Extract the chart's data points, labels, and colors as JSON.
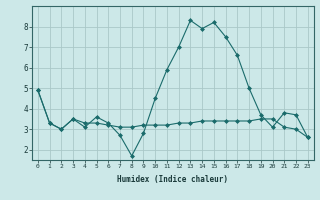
{
  "xlabel": "Humidex (Indice chaleur)",
  "ylabel": "",
  "background_color": "#cce8e8",
  "grid_color": "#aac8c8",
  "line_color": "#1a6b6b",
  "x": [
    0,
    1,
    2,
    3,
    4,
    5,
    6,
    7,
    8,
    9,
    10,
    11,
    12,
    13,
    14,
    15,
    16,
    17,
    18,
    19,
    20,
    21,
    22,
    23
  ],
  "line1": [
    4.9,
    3.3,
    3.0,
    3.5,
    3.1,
    3.6,
    3.3,
    2.7,
    1.7,
    2.8,
    4.5,
    5.9,
    7.0,
    8.3,
    7.9,
    8.2,
    7.5,
    6.6,
    5.0,
    3.7,
    3.1,
    3.8,
    3.7,
    2.6
  ],
  "line2": [
    4.9,
    3.3,
    3.0,
    3.5,
    3.3,
    3.3,
    3.2,
    3.1,
    3.1,
    3.2,
    3.2,
    3.2,
    3.3,
    3.3,
    3.4,
    3.4,
    3.4,
    3.4,
    3.4,
    3.5,
    3.5,
    3.1,
    3.0,
    2.6
  ],
  "ylim": [
    1.5,
    9.0
  ],
  "yticks": [
    2,
    3,
    4,
    5,
    6,
    7,
    8
  ],
  "xtick_labels": [
    "0",
    "1",
    "2",
    "3",
    "4",
    "5",
    "6",
    "7",
    "8",
    "9",
    "10",
    "11",
    "12",
    "13",
    "14",
    "15",
    "16",
    "17",
    "18",
    "19",
    "20",
    "21",
    "22",
    "23"
  ]
}
